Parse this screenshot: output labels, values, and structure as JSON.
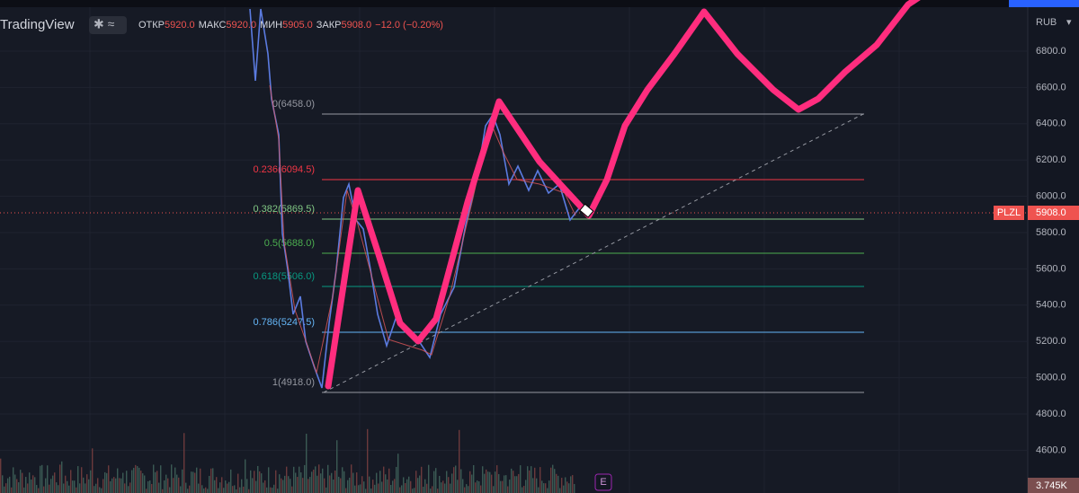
{
  "header": {
    "logo": "TradingView",
    "ohlc": [
      {
        "label": "ОТКР",
        "value": "5920.0"
      },
      {
        "label": "МАКС",
        "value": "5920.0"
      },
      {
        "label": "МИН",
        "value": "5905.0"
      },
      {
        "label": "ЗАКР",
        "value": "5908.0"
      }
    ],
    "change": "−12.0 (−0.20%)"
  },
  "price_axis": {
    "currency": "RUB",
    "labels": [
      "6800.0",
      "6600.0",
      "6400.0",
      "6200.0",
      "6000.0",
      "5800.0",
      "5600.0",
      "5400.0",
      "5200.0",
      "5000.0",
      "4800.0",
      "4600.0"
    ],
    "ticker": "PLZL",
    "last_price": "5908.0",
    "volume": "3.745K"
  },
  "fib_levels": [
    "0(6458.0)",
    "0.236(6094.5)",
    "0.382(5869.5)",
    "0.5(5688.0)",
    "0.618(5506.0)",
    "0.786(5247.5)",
    "1(4918.0)"
  ],
  "event_marker": "E"
}
